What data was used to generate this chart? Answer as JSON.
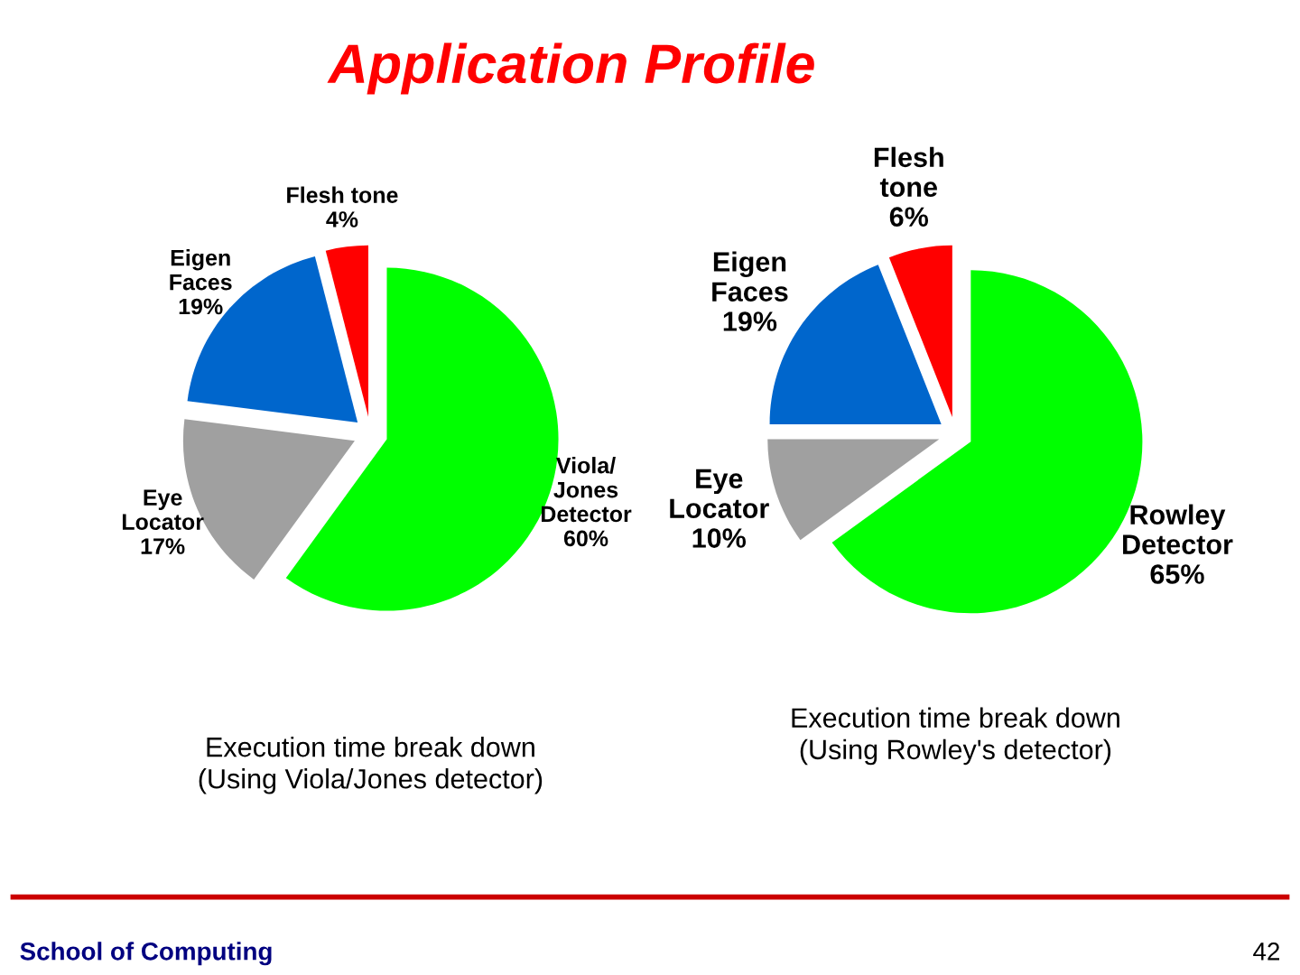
{
  "chart_data": [
    {
      "type": "pie",
      "title": "Application Profile",
      "categories": [
        "Viola/\nJones\nDetector",
        "Eye\nLocator",
        "Eigen\nFaces",
        "Flesh tone"
      ],
      "values": [
        60,
        17,
        19,
        4
      ],
      "value_labels": [
        "60%",
        "17%",
        "19%",
        "4%"
      ],
      "colors": [
        "#00ff00",
        "#a0a0a0",
        "#0066cc",
        "#ff0000"
      ],
      "legend": false,
      "annotations": [
        "Execution time break down\n(Using Viola/Jones detector)",
        "School of Computing",
        "42"
      ]
    },
    {
      "type": "pie",
      "categories": [
        "Rowley\nDetector",
        "Eye\nLocator",
        "Eigen\nFaces",
        "Flesh\ntone"
      ],
      "values": [
        65,
        10,
        19,
        6
      ],
      "value_labels": [
        "65%",
        "10%",
        "19%",
        "6%"
      ],
      "colors": [
        "#00ff00",
        "#a0a0a0",
        "#0066cc",
        "#ff0000"
      ],
      "legend": false,
      "annotations": [
        "Execution time break down\n(Using Rowley's detector)"
      ]
    }
  ]
}
